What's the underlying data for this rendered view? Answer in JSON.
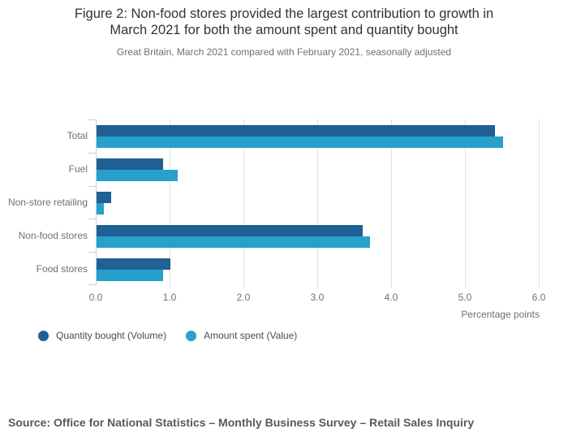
{
  "header": {
    "title_line1": "Figure 2: Non-food stores provided the largest contribution to growth in",
    "title_line2": "March 2021 for both the amount spent and quantity bought",
    "subtitle": "Great Britain, March 2021 compared with February 2021, seasonally adjusted"
  },
  "chart_data": {
    "type": "bar",
    "orientation": "horizontal",
    "title": "Figure 2: Non-food stores provided the largest contribution to growth in March 2021 for both the amount spent and quantity bought",
    "subtitle": "Great Britain, March 2021 compared with February 2021, seasonally adjusted",
    "categories": [
      "Total",
      "Fuel",
      "Non-store retailing",
      "Non-food stores",
      "Food stores"
    ],
    "series": [
      {
        "name": "Quantity bought (Volume)",
        "color": "#206095",
        "values": [
          5.4,
          0.9,
          0.2,
          3.6,
          1.0
        ]
      },
      {
        "name": "Amount spent (Value)",
        "color": "#27A0CC",
        "values": [
          5.5,
          1.1,
          0.1,
          3.7,
          0.9
        ]
      }
    ],
    "xlabel": "Percentage points",
    "xlim": [
      0,
      6
    ],
    "xtick_labels": [
      "0.0",
      "1.0",
      "2.0",
      "3.0",
      "4.0",
      "5.0",
      "6.0"
    ],
    "grid": true,
    "legend_position": "bottom-left"
  },
  "footer": {
    "source": "Source: Office for National Statistics – Monthly Business Survey – Retail Sales Inquiry"
  },
  "colors": {
    "volume_series": "#206095",
    "value_series": "#27A0CC",
    "gridline": "#e2e2e2",
    "axis_line": "#c6d3db",
    "muted_text": "#707070",
    "title_text": "#333333",
    "source_text": "#595959"
  }
}
